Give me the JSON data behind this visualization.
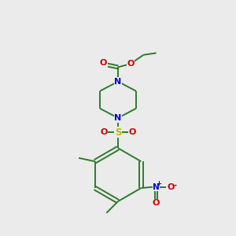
{
  "bg_color": "#ebebeb",
  "bond_color": "#2d7a2d",
  "N_color": "#0000cc",
  "O_color": "#cc0000",
  "S_color": "#bbbb00",
  "line_width": 1.4,
  "fig_size": [
    3.0,
    3.0
  ],
  "dpi": 100,
  "xlim": [
    0,
    10
  ],
  "ylim": [
    0,
    10
  ]
}
